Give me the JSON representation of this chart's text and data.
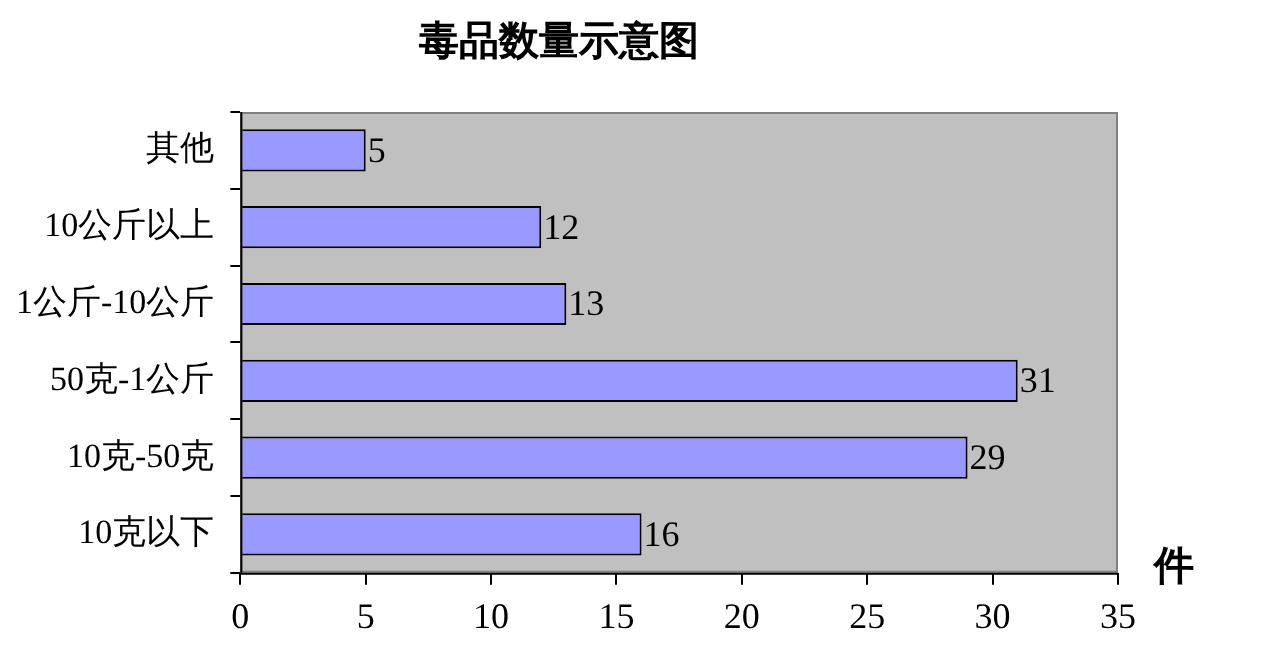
{
  "chart_data": {
    "type": "bar",
    "orientation": "horizontal",
    "title": "毒品数量示意图",
    "xlabel": "件",
    "categories": [
      "其他",
      "10公斤以上",
      "1公斤-10公斤",
      "50克-1公斤",
      "10克-50克",
      "10克以下"
    ],
    "values": [
      5,
      12,
      13,
      31,
      29,
      16
    ],
    "color": "#9999ff",
    "xlim": [
      0,
      35
    ],
    "xticks": [
      0,
      5,
      10,
      15,
      20,
      25,
      30,
      35
    ],
    "grid": false,
    "legend": false,
    "data_labels": true
  }
}
